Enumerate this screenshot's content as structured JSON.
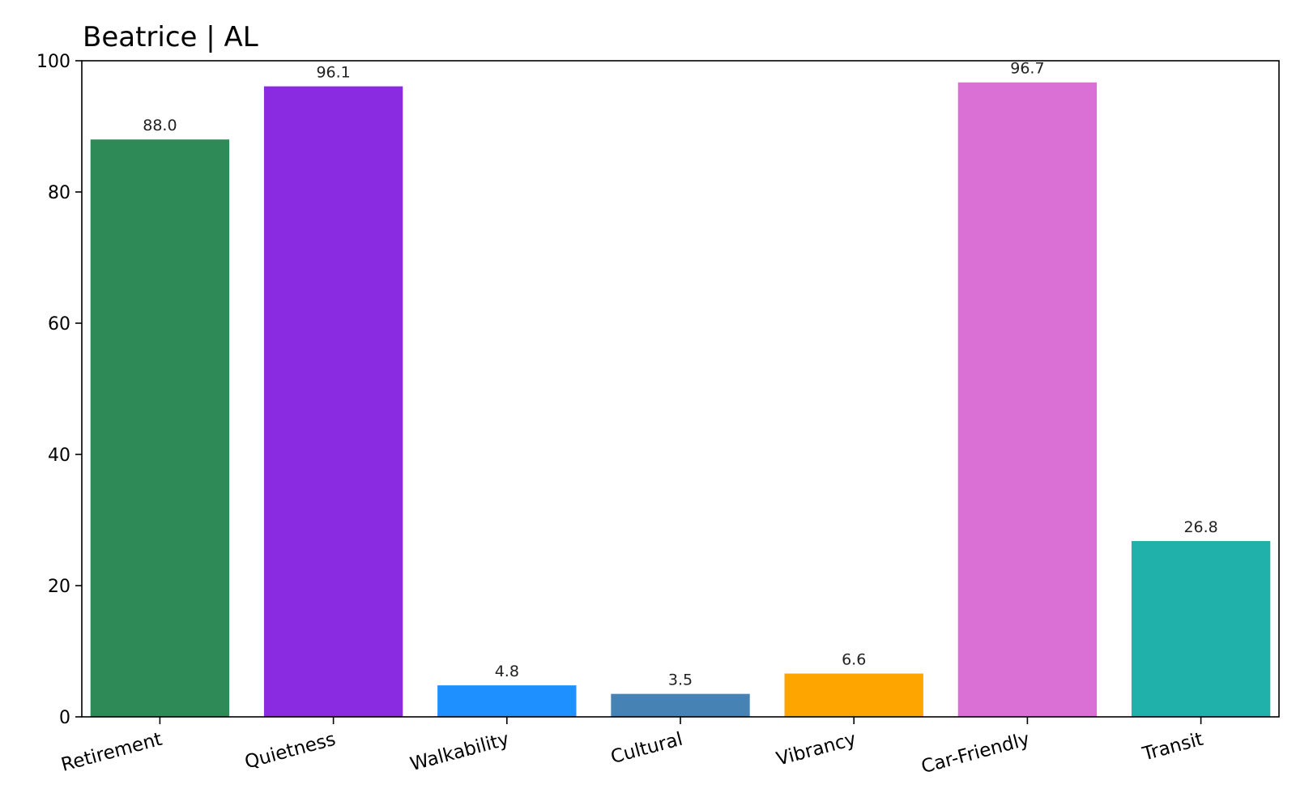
{
  "chart_data": {
    "type": "bar",
    "title": "Beatrice | AL",
    "xlabel": "",
    "ylabel": "",
    "ylim": [
      0,
      100
    ],
    "yticks": [
      0,
      20,
      40,
      60,
      80,
      100
    ],
    "grid": false,
    "legend": "none",
    "categories": [
      "Retirement",
      "Quietness",
      "Walkability",
      "Cultural",
      "Vibrancy",
      "Car-Friendly",
      "Transit"
    ],
    "values": [
      88.0,
      96.1,
      4.8,
      3.5,
      6.6,
      96.7,
      26.8
    ],
    "value_labels": [
      "88.0",
      "96.1",
      "4.8",
      "3.5",
      "6.6",
      "96.7",
      "26.8"
    ],
    "colors": [
      "#2e8b57",
      "#8a2be2",
      "#1e90ff",
      "#4682b4",
      "#ffa500",
      "#da70d6",
      "#20b2aa"
    ]
  }
}
